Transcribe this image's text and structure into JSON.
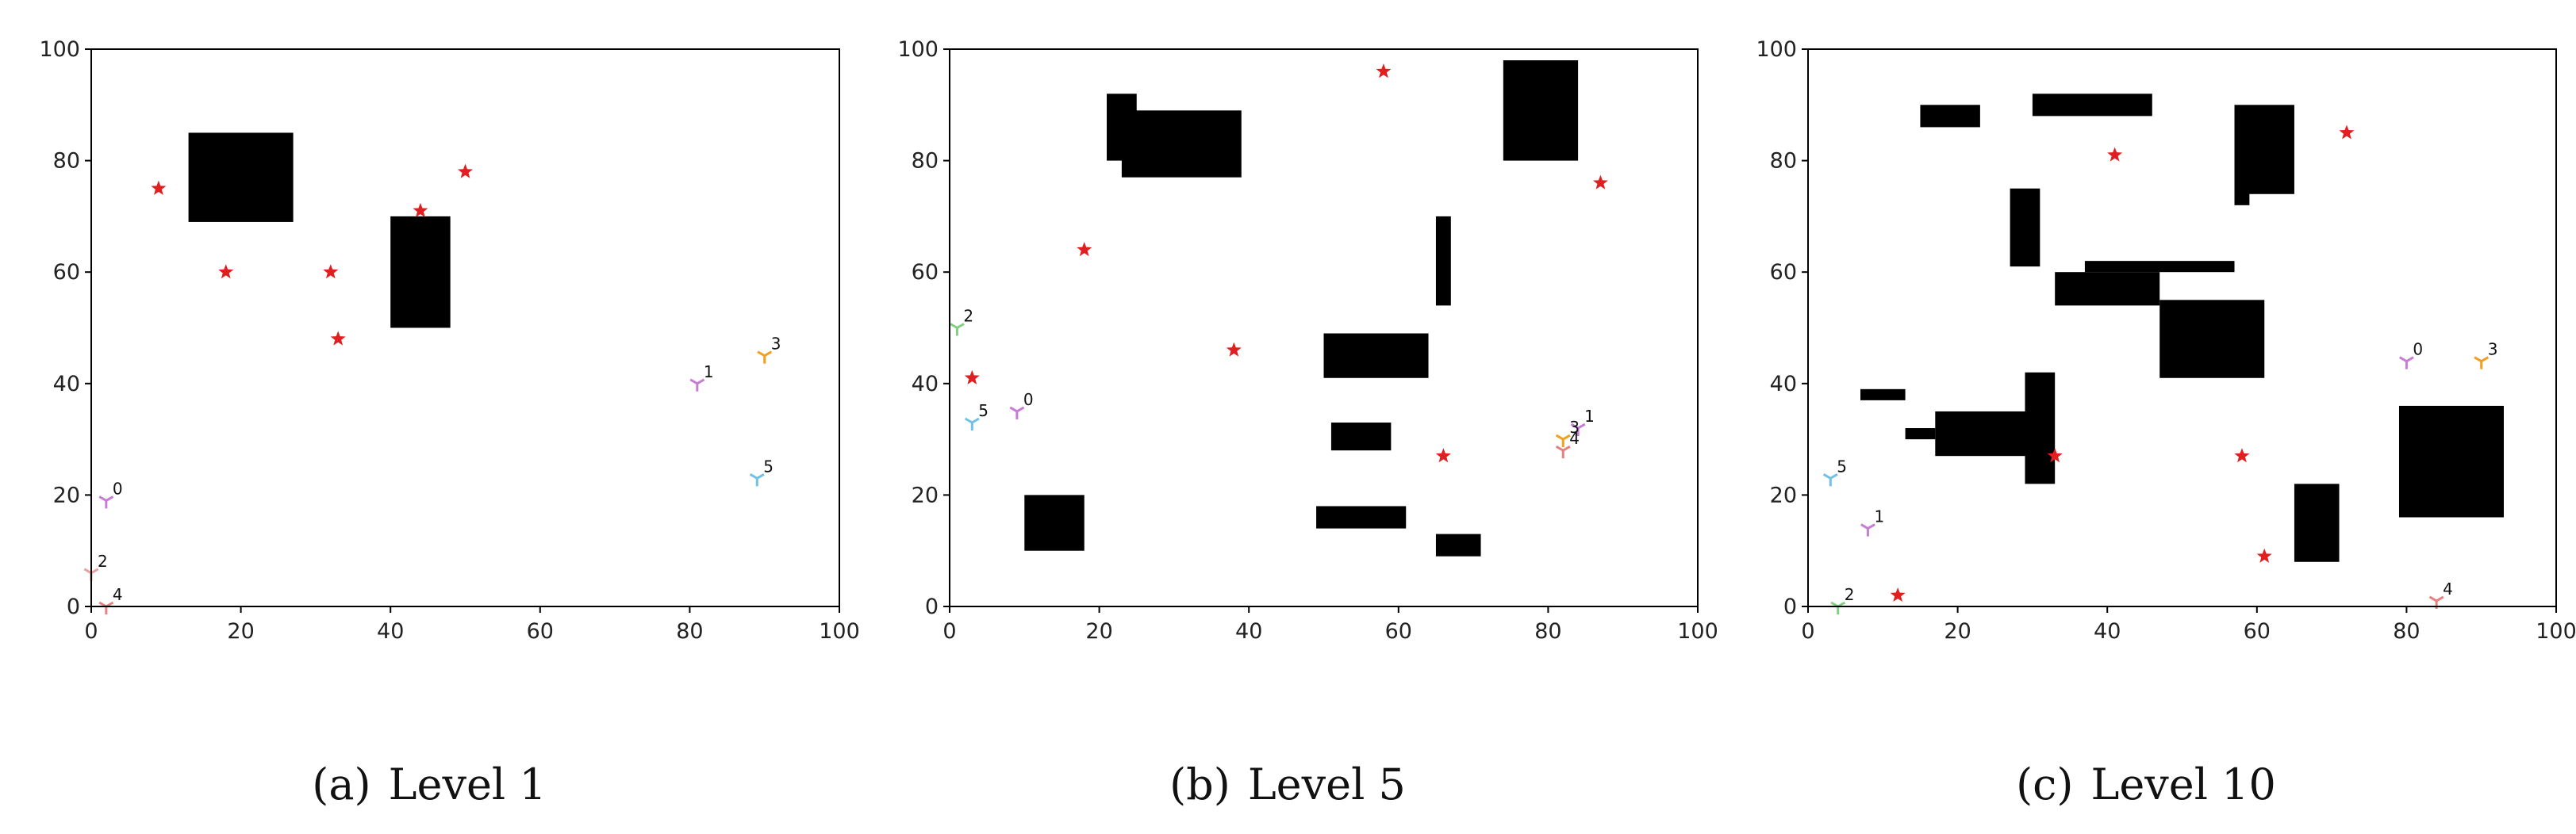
{
  "chart_data": [
    {
      "type": "scatter",
      "caption_label": "(a)",
      "caption_title": "Level 1",
      "xlim": [
        0,
        100
      ],
      "ylim": [
        0,
        100
      ],
      "xticks": [
        0,
        20,
        40,
        60,
        80,
        100
      ],
      "yticks": [
        0,
        20,
        40,
        60,
        80,
        100
      ],
      "obstacles": [
        {
          "x0": 13,
          "x1": 27,
          "y0": 69,
          "y1": 85
        },
        {
          "x0": 40,
          "x1": 48,
          "y0": 50,
          "y1": 70
        }
      ],
      "targets": [
        {
          "x": 9,
          "y": 75
        },
        {
          "x": 18,
          "y": 60
        },
        {
          "x": 32,
          "y": 60
        },
        {
          "x": 33,
          "y": 48
        },
        {
          "x": 44,
          "y": 71
        },
        {
          "x": 50,
          "y": 78
        }
      ],
      "agents": [
        {
          "label": "0",
          "x": 2,
          "y": 19,
          "color": "#c77cd6"
        },
        {
          "label": "1",
          "x": 81,
          "y": 40,
          "color": "#c77cd6"
        },
        {
          "label": "2",
          "x": 0,
          "y": 6,
          "color": "#e8a0a0"
        },
        {
          "label": "3",
          "x": 90,
          "y": 45,
          "color": "#f0a020"
        },
        {
          "label": "4",
          "x": 2,
          "y": 0,
          "color": "#e88080"
        },
        {
          "label": "5",
          "x": 89,
          "y": 23,
          "color": "#70c0e8"
        }
      ]
    },
    {
      "type": "scatter",
      "caption_label": "(b)",
      "caption_title": "Level 5",
      "xlim": [
        0,
        100
      ],
      "ylim": [
        0,
        100
      ],
      "xticks": [
        0,
        20,
        40,
        60,
        80,
        100
      ],
      "yticks": [
        0,
        20,
        40,
        60,
        80,
        100
      ],
      "obstacles": [
        {
          "x0": 21,
          "x1": 25,
          "y0": 80,
          "y1": 92
        },
        {
          "x0": 23,
          "x1": 39,
          "y0": 77,
          "y1": 89
        },
        {
          "x0": 74,
          "x1": 84,
          "y0": 80,
          "y1": 98
        },
        {
          "x0": 65,
          "x1": 67,
          "y0": 54,
          "y1": 70
        },
        {
          "x0": 50,
          "x1": 64,
          "y0": 41,
          "y1": 49
        },
        {
          "x0": 51,
          "x1": 59,
          "y0": 28,
          "y1": 33
        },
        {
          "x0": 49,
          "x1": 61,
          "y0": 14,
          "y1": 18
        },
        {
          "x0": 65,
          "x1": 71,
          "y0": 9,
          "y1": 13
        },
        {
          "x0": 10,
          "x1": 18,
          "y0": 10,
          "y1": 20
        }
      ],
      "targets": [
        {
          "x": 58,
          "y": 96
        },
        {
          "x": 87,
          "y": 76
        },
        {
          "x": 18,
          "y": 64
        },
        {
          "x": 38,
          "y": 46
        },
        {
          "x": 3,
          "y": 41
        },
        {
          "x": 66,
          "y": 27
        }
      ],
      "agents": [
        {
          "label": "0",
          "x": 9,
          "y": 35,
          "color": "#c77cd6"
        },
        {
          "label": "1",
          "x": 84,
          "y": 32,
          "color": "#c77cd6"
        },
        {
          "label": "2",
          "x": 1,
          "y": 50,
          "color": "#80d080"
        },
        {
          "label": "3",
          "x": 82,
          "y": 30,
          "color": "#f0a020"
        },
        {
          "label": "4",
          "x": 82,
          "y": 28,
          "color": "#e88080"
        },
        {
          "label": "5",
          "x": 3,
          "y": 33,
          "color": "#70c0e8"
        }
      ]
    },
    {
      "type": "scatter",
      "caption_label": "(c)",
      "caption_title": "Level 10",
      "xlim": [
        0,
        100
      ],
      "ylim": [
        0,
        100
      ],
      "xticks": [
        0,
        20,
        40,
        60,
        80,
        100
      ],
      "yticks": [
        0,
        20,
        40,
        60,
        80,
        100
      ],
      "obstacles": [
        {
          "x0": 15,
          "x1": 23,
          "y0": 86,
          "y1": 90
        },
        {
          "x0": 30,
          "x1": 46,
          "y0": 88,
          "y1": 92
        },
        {
          "x0": 57,
          "x1": 65,
          "y0": 74,
          "y1": 90
        },
        {
          "x0": 57,
          "x1": 59,
          "y0": 72,
          "y1": 75
        },
        {
          "x0": 27,
          "x1": 31,
          "y0": 61,
          "y1": 75
        },
        {
          "x0": 33,
          "x1": 47,
          "y0": 54,
          "y1": 60
        },
        {
          "x0": 37,
          "x1": 57,
          "y0": 60,
          "y1": 62
        },
        {
          "x0": 47,
          "x1": 61,
          "y0": 41,
          "y1": 55
        },
        {
          "x0": 7,
          "x1": 13,
          "y0": 37,
          "y1": 39
        },
        {
          "x0": 17,
          "x1": 31,
          "y0": 27,
          "y1": 35
        },
        {
          "x0": 13,
          "x1": 17,
          "y0": 30,
          "y1": 32
        },
        {
          "x0": 29,
          "x1": 33,
          "y0": 22,
          "y1": 42
        },
        {
          "x0": 79,
          "x1": 93,
          "y0": 16,
          "y1": 36
        },
        {
          "x0": 65,
          "x1": 71,
          "y0": 8,
          "y1": 22
        }
      ],
      "targets": [
        {
          "x": 72,
          "y": 85
        },
        {
          "x": 41,
          "y": 81
        },
        {
          "x": 33,
          "y": 27
        },
        {
          "x": 58,
          "y": 27
        },
        {
          "x": 61,
          "y": 9
        },
        {
          "x": 12,
          "y": 2
        }
      ],
      "agents": [
        {
          "label": "0",
          "x": 80,
          "y": 44,
          "color": "#c77cd6"
        },
        {
          "label": "1",
          "x": 8,
          "y": 14,
          "color": "#c77cd6"
        },
        {
          "label": "2",
          "x": 4,
          "y": 0,
          "color": "#80d080"
        },
        {
          "label": "3",
          "x": 90,
          "y": 44,
          "color": "#f0a020"
        },
        {
          "label": "4",
          "x": 84,
          "y": 1,
          "color": "#e88080"
        },
        {
          "label": "5",
          "x": 3,
          "y": 23,
          "color": "#70c0e8"
        }
      ]
    }
  ],
  "colors": {
    "obstacle": "#000000",
    "target": "#e02020",
    "axis": "#000000"
  },
  "icons": {
    "target": "star-icon",
    "agent": "tri-marker-icon"
  }
}
